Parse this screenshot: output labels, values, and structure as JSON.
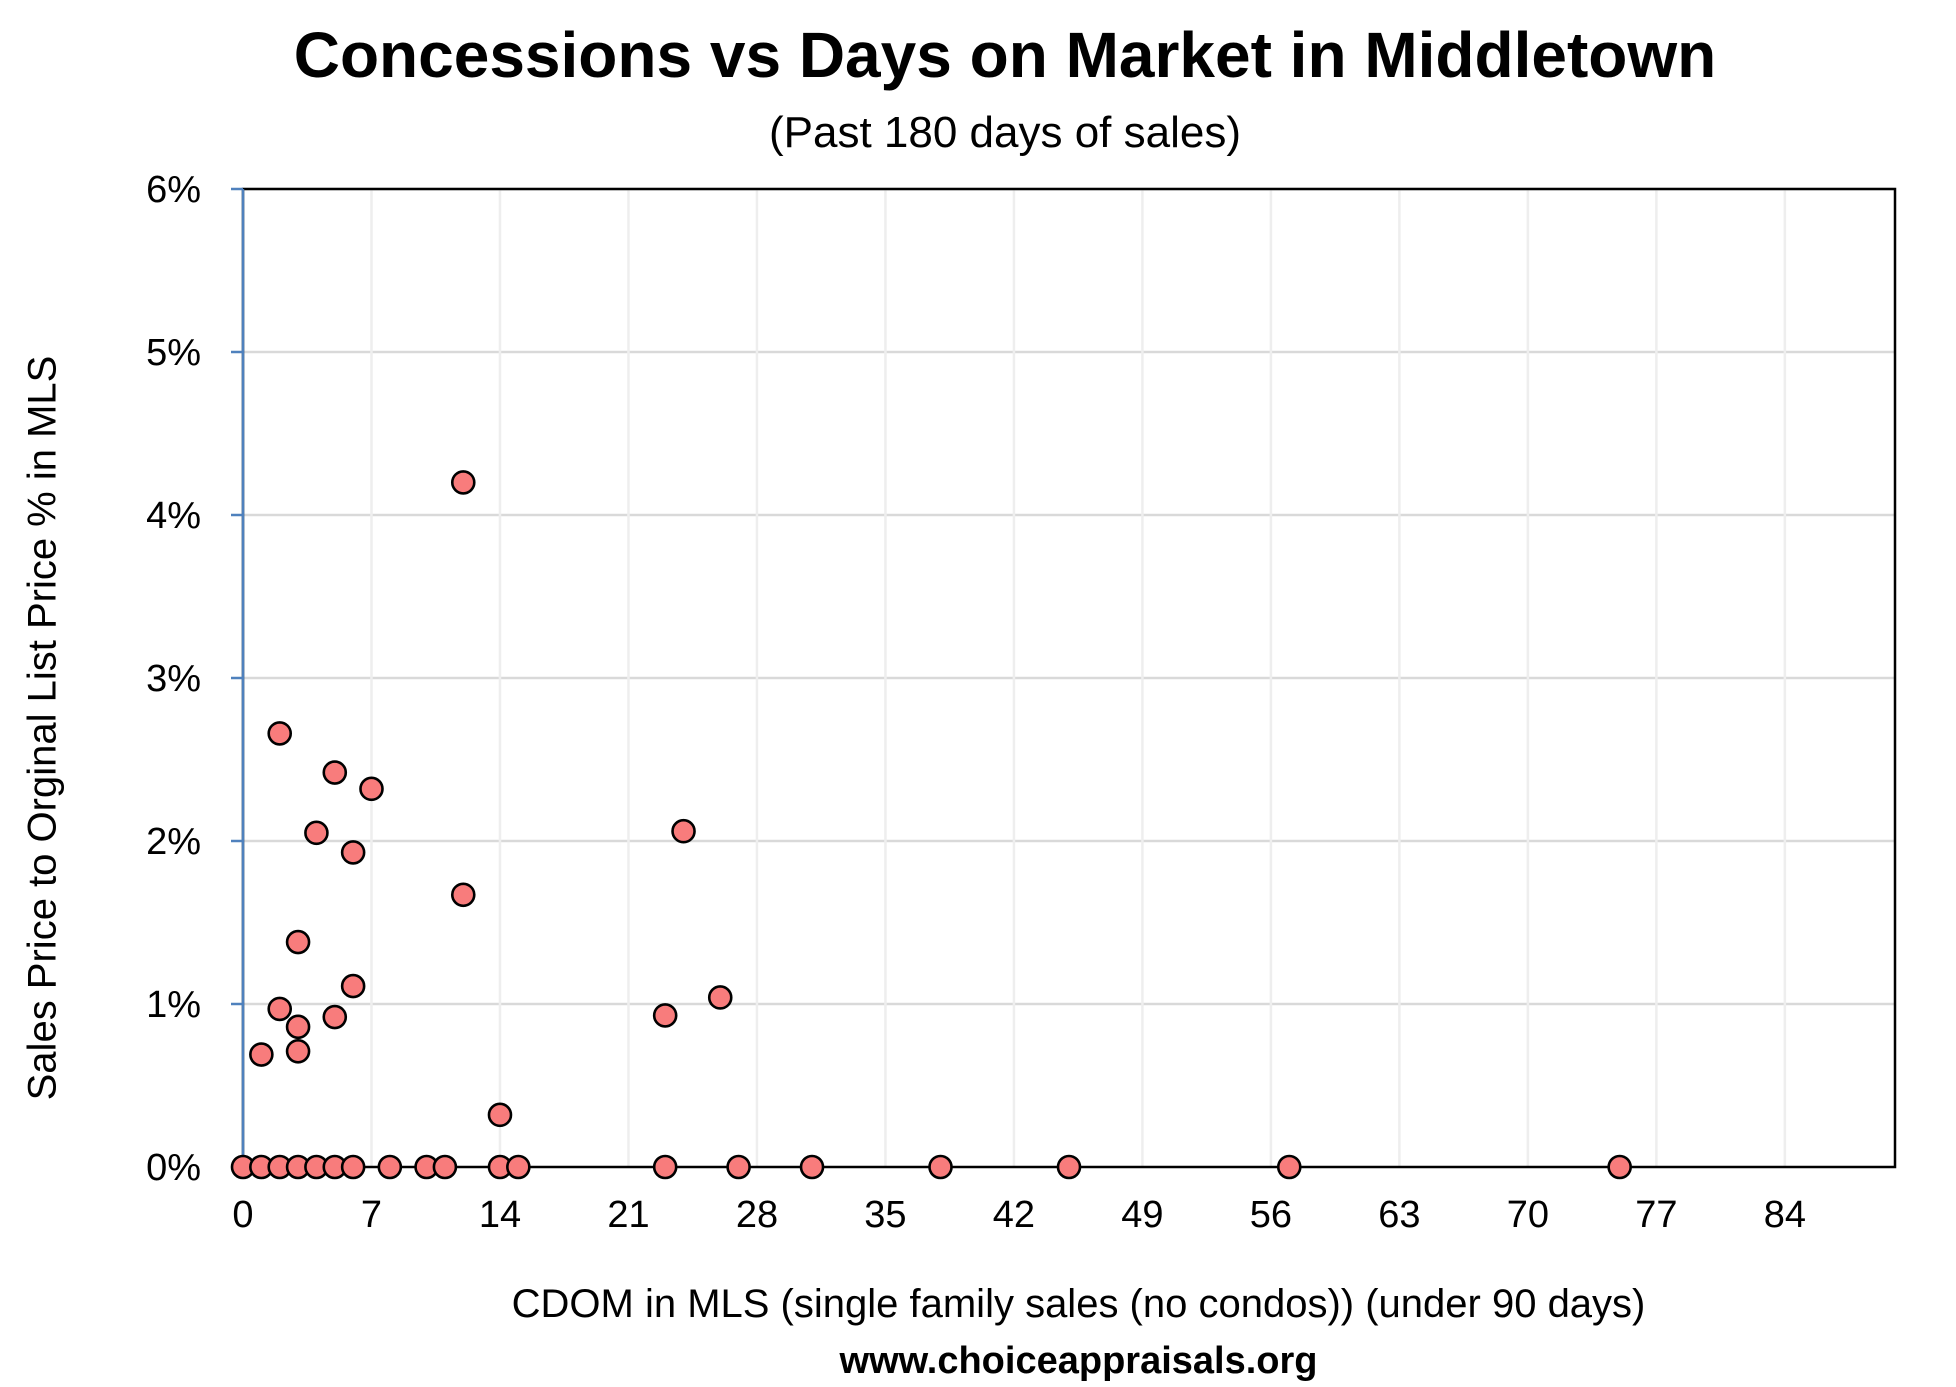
{
  "chart_data": {
    "type": "scatter",
    "title": "Concessions vs Days on Market in Middletown",
    "subtitle": "(Past 180 days of sales)",
    "xlabel": "CDOM in MLS (single family sales (no condos)) (under 90 days)",
    "ylabel": "Sales Price to Orginal List Price % in MLS",
    "footer": "www.choiceappraisals.org",
    "xlim": [
      0,
      90
    ],
    "ylim": [
      0,
      6
    ],
    "x_ticks": [
      0,
      7,
      14,
      21,
      28,
      35,
      42,
      49,
      56,
      63,
      70,
      77,
      84
    ],
    "y_ticks": [
      0,
      1,
      2,
      3,
      4,
      5,
      6
    ],
    "y_tick_format": "%",
    "grid": true,
    "marker_color": "#f87c7c",
    "marker_edge_color": "#000000",
    "points": [
      {
        "x": 12,
        "y": 4.2
      },
      {
        "x": 2,
        "y": 2.66
      },
      {
        "x": 5,
        "y": 2.42
      },
      {
        "x": 7,
        "y": 2.32
      },
      {
        "x": 24,
        "y": 2.06
      },
      {
        "x": 4,
        "y": 2.05
      },
      {
        "x": 6,
        "y": 1.93
      },
      {
        "x": 12,
        "y": 1.67
      },
      {
        "x": 3,
        "y": 1.38
      },
      {
        "x": 6,
        "y": 1.11
      },
      {
        "x": 26,
        "y": 1.04
      },
      {
        "x": 2,
        "y": 0.97
      },
      {
        "x": 23,
        "y": 0.93
      },
      {
        "x": 5,
        "y": 0.92
      },
      {
        "x": 3,
        "y": 0.86
      },
      {
        "x": 3,
        "y": 0.71
      },
      {
        "x": 1,
        "y": 0.69
      },
      {
        "x": 14,
        "y": 0.32
      },
      {
        "x": 0,
        "y": 0
      },
      {
        "x": 1,
        "y": 0
      },
      {
        "x": 2,
        "y": 0
      },
      {
        "x": 3,
        "y": 0
      },
      {
        "x": 4,
        "y": 0
      },
      {
        "x": 5,
        "y": 0
      },
      {
        "x": 6,
        "y": 0
      },
      {
        "x": 8,
        "y": 0
      },
      {
        "x": 10,
        "y": 0
      },
      {
        "x": 11,
        "y": 0
      },
      {
        "x": 14,
        "y": 0
      },
      {
        "x": 15,
        "y": 0
      },
      {
        "x": 23,
        "y": 0
      },
      {
        "x": 27,
        "y": 0
      },
      {
        "x": 31,
        "y": 0
      },
      {
        "x": 38,
        "y": 0
      },
      {
        "x": 45,
        "y": 0
      },
      {
        "x": 57,
        "y": 0
      },
      {
        "x": 75,
        "y": 0
      }
    ]
  }
}
